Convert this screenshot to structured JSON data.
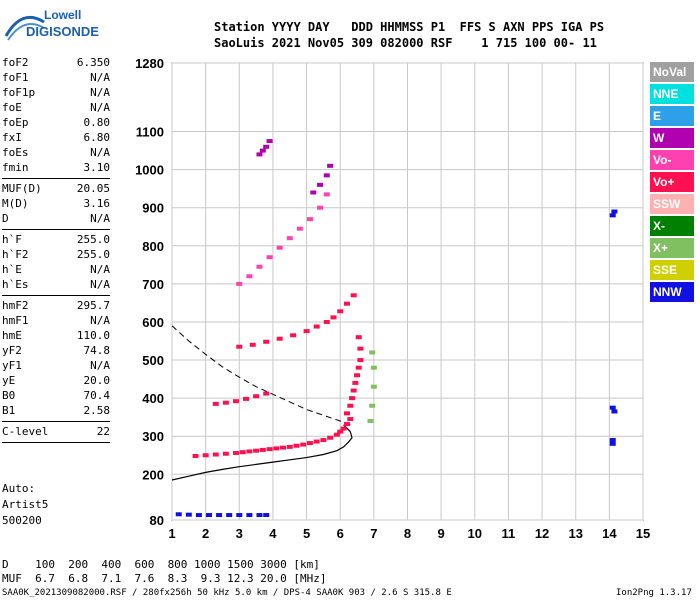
{
  "logo": {
    "line1": "Lowell",
    "line2": "DIGISONDE"
  },
  "header": {
    "line1": "Station YYYY DAY   DDD HHMMSS P1  FFS S AXN PPS IGA PS",
    "line2": "SaoLuis 2021 Nov05 309 082000 RSF    1 715 100 00- 11"
  },
  "params": [
    {
      "group": [
        {
          "name": "foF2",
          "value": "6.350"
        },
        {
          "name": "foF1",
          "value": "N/A"
        },
        {
          "name": "foF1p",
          "value": "N/A"
        },
        {
          "name": "foE",
          "value": "N/A"
        },
        {
          "name": "foEp",
          "value": "0.80"
        },
        {
          "name": "fxI",
          "value": "6.80"
        },
        {
          "name": "foEs",
          "value": "N/A"
        },
        {
          "name": "fmin",
          "value": "3.10"
        }
      ]
    },
    {
      "group": [
        {
          "name": "MUF(D)",
          "value": "20.05"
        },
        {
          "name": "M(D)",
          "value": "3.16"
        },
        {
          "name": "D",
          "value": "N/A"
        }
      ]
    },
    {
      "group": [
        {
          "name": "h`F",
          "value": "255.0"
        },
        {
          "name": "h`F2",
          "value": "255.0"
        },
        {
          "name": "h`E",
          "value": "N/A"
        },
        {
          "name": "h`Es",
          "value": "N/A"
        }
      ]
    },
    {
      "group": [
        {
          "name": "hmF2",
          "value": "295.7"
        },
        {
          "name": "hmF1",
          "value": "N/A"
        },
        {
          "name": "hmE",
          "value": "110.0"
        },
        {
          "name": "yF2",
          "value": "74.8"
        },
        {
          "name": "yF1",
          "value": "N/A"
        },
        {
          "name": "yE",
          "value": "20.0"
        },
        {
          "name": "B0",
          "value": "70.4"
        },
        {
          "name": "B1",
          "value": "2.58"
        }
      ]
    },
    {
      "group": [
        {
          "name": "C-level",
          "value": "22"
        }
      ]
    }
  ],
  "autoscale": {
    "line1": "Auto:",
    "line2": "Artist5",
    "line3": "500200"
  },
  "legend": [
    {
      "label": "NoVal",
      "color": "#a0a0a0"
    },
    {
      "label": "NNE",
      "color": "#00e0e0"
    },
    {
      "label": "E",
      "color": "#2ea0e8"
    },
    {
      "label": "W",
      "color": "#b000b0"
    },
    {
      "label": "Vo-",
      "color": "#ff40b0"
    },
    {
      "label": "Vo+",
      "color": "#ff1050"
    },
    {
      "label": "SSW",
      "color": "#ffb0b0"
    },
    {
      "label": "X-",
      "color": "#008000"
    },
    {
      "label": "X+",
      "color": "#80c060"
    },
    {
      "label": "SSE",
      "color": "#d0d000"
    },
    {
      "label": "NNW",
      "color": "#1010e0"
    }
  ],
  "muf_table": {
    "line1": "D    100  200  400  600  800 1000 1500 3000 [km]",
    "line2": "MUF  6.7  6.8  7.1  7.6  8.3  9.3 12.3 20.0 [MHz]"
  },
  "footer": {
    "left": "SAA0K_2021309082000.RSF / 280fx256h 50 kHz 5.0 km / DPS-4 SAA0K 903 / 2.6 S 315.8 E",
    "right": "Ion2Png 1.3.17"
  },
  "chart_data": {
    "type": "scatter",
    "xlim": [
      1,
      15
    ],
    "ylim": [
      80,
      1280
    ],
    "x_ticks": [
      1,
      2,
      3,
      4,
      5,
      6,
      7,
      8,
      9,
      10,
      11,
      12,
      13,
      14,
      15
    ],
    "y_ticks": [
      80,
      200,
      300,
      400,
      500,
      600,
      700,
      800,
      900,
      1000,
      1100,
      1280
    ],
    "grid": true,
    "profile_solid": {
      "x": [
        1.0,
        1.5,
        2.0,
        2.5,
        3.0,
        3.5,
        4.0,
        4.5,
        5.0,
        5.5,
        5.9,
        6.1,
        6.25,
        6.35,
        6.3,
        6.1
      ],
      "y": [
        185,
        195,
        205,
        213,
        220,
        226,
        232,
        238,
        244,
        252,
        262,
        272,
        285,
        296,
        312,
        330
      ]
    },
    "profile_dashed": {
      "x": [
        1.0,
        1.5,
        2.0,
        2.5,
        3.0,
        3.5,
        4.0,
        4.5,
        5.0,
        5.5,
        6.0,
        6.3
      ],
      "y": [
        590,
        550,
        515,
        482,
        455,
        430,
        410,
        390,
        370,
        355,
        340,
        330
      ]
    },
    "traces": [
      {
        "series": "Vo+",
        "x": [
          3.1,
          3.3,
          3.5,
          3.7,
          3.9,
          4.1,
          4.3,
          4.5,
          4.7,
          4.9,
          5.1,
          5.3,
          5.5,
          5.7,
          5.9,
          6.0,
          6.1,
          6.2,
          6.3
        ],
        "y": [
          258,
          260,
          262,
          264,
          266,
          268,
          270,
          272,
          275,
          278,
          282,
          286,
          290,
          296,
          304,
          312,
          320,
          332,
          345
        ]
      },
      {
        "series": "Vo+",
        "x": [
          6.2,
          6.3,
          6.35,
          6.4,
          6.45,
          6.5,
          6.55,
          6.6,
          6.6,
          6.55
        ],
        "y": [
          360,
          380,
          400,
          420,
          440,
          460,
          480,
          500,
          530,
          560
        ]
      },
      {
        "series": "Vo+",
        "x": [
          3.0,
          3.4,
          3.8,
          4.2,
          4.6,
          5.0,
          5.3,
          5.6,
          5.8,
          6.0,
          6.2,
          6.4
        ],
        "y": [
          535,
          540,
          548,
          556,
          565,
          576,
          588,
          600,
          612,
          628,
          648,
          670
        ]
      },
      {
        "series": "Vo-",
        "x": [
          3.0,
          3.3,
          3.6,
          3.9,
          4.2,
          4.5,
          4.8,
          5.1,
          5.4,
          5.6
        ],
        "y": [
          700,
          720,
          745,
          770,
          795,
          820,
          845,
          870,
          900,
          935
        ]
      },
      {
        "series": "Vo+",
        "x": [
          2.3,
          2.6,
          2.9,
          3.2,
          3.5,
          3.8
        ],
        "y": [
          385,
          388,
          392,
          398,
          405,
          412
        ]
      },
      {
        "series": "Vo+",
        "x": [
          1.7,
          2.0,
          2.3,
          2.6,
          2.9
        ],
        "y": [
          248,
          250,
          252,
          254,
          256
        ]
      },
      {
        "series": "NNW",
        "x": [
          1.2,
          1.5,
          1.8,
          2.1,
          2.4,
          2.7,
          3.0,
          3.3,
          3.6,
          3.8
        ],
        "y": [
          95,
          94,
          93,
          93,
          93,
          93,
          93,
          93,
          93,
          93
        ]
      },
      {
        "series": "W",
        "x": [
          3.6,
          3.7,
          3.8,
          3.9
        ],
        "y": [
          1040,
          1050,
          1060,
          1075
        ]
      },
      {
        "series": "W",
        "x": [
          5.2,
          5.4,
          5.6,
          5.7
        ],
        "y": [
          940,
          960,
          985,
          1010
        ]
      },
      {
        "series": "X+",
        "x": [
          6.9,
          6.95,
          7.0,
          7.0,
          6.95
        ],
        "y": [
          340,
          380,
          430,
          480,
          520
        ]
      },
      {
        "series": "NNW",
        "x": [
          14.1,
          14.15,
          14.1,
          14.15,
          14.1,
          14.1
        ],
        "y": [
          880,
          890,
          375,
          365,
          290,
          280
        ]
      }
    ]
  }
}
